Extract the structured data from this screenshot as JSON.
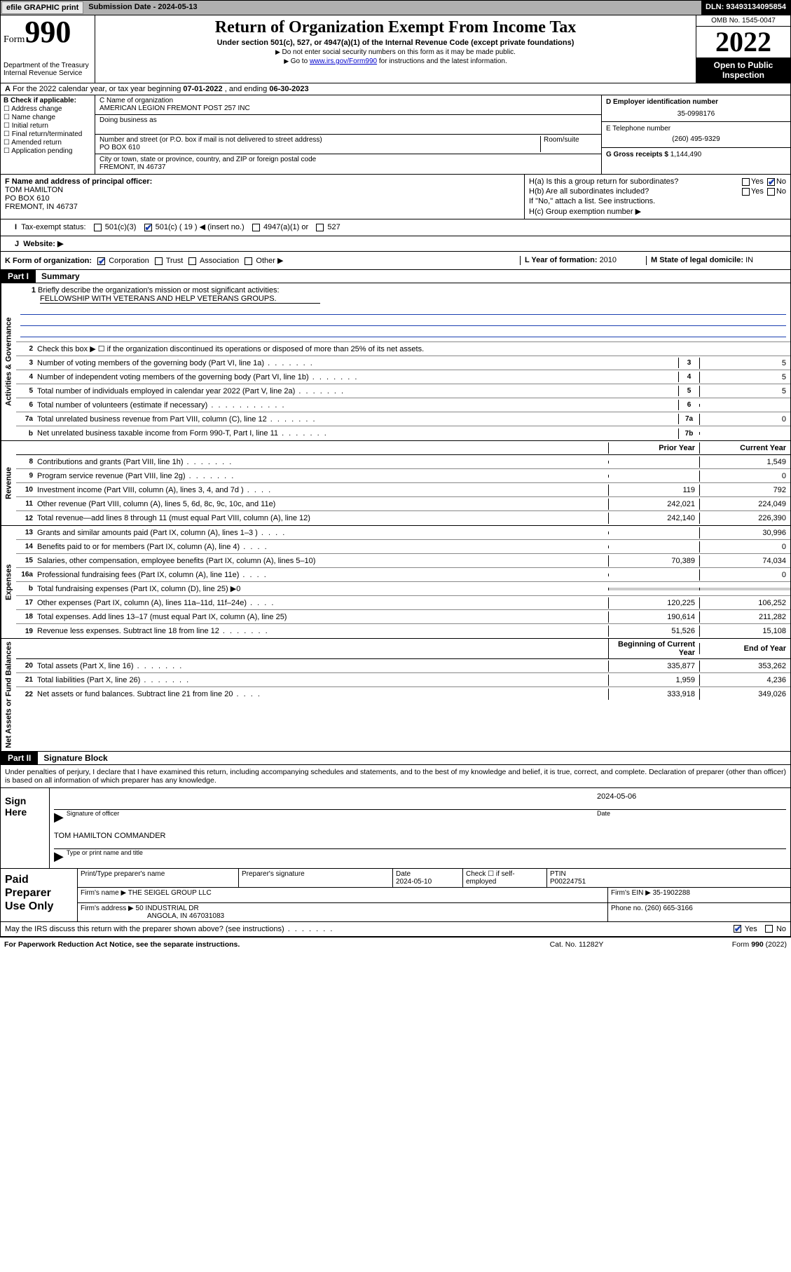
{
  "topbar": {
    "efile": "efile GRAPHIC print",
    "subdate_label": "Submission Date - ",
    "subdate": "2024-05-13",
    "dln": "DLN: 93493134095854"
  },
  "header": {
    "form_label": "Form",
    "form_no": "990",
    "dept": "Department of the Treasury",
    "irs": "Internal Revenue Service",
    "title": "Return of Organization Exempt From Income Tax",
    "sub": "Under section 501(c), 527, or 4947(a)(1) of the Internal Revenue Code (except private foundations)",
    "note1": "Do not enter social security numbers on this form as it may be made public.",
    "note2_a": "Go to ",
    "note2_link": "www.irs.gov/Form990",
    "note2_b": " for instructions and the latest information.",
    "omb": "OMB No. 1545-0047",
    "year": "2022",
    "open": "Open to Public Inspection"
  },
  "rowA": {
    "a": "A",
    "text_a": "For the 2022 calendar year, or tax year beginning ",
    "begin": "07-01-2022",
    "text_b": " , and ending ",
    "end": "06-30-2023"
  },
  "colB": {
    "label": "B Check if applicable:",
    "items": [
      "Address change",
      "Name change",
      "Initial return",
      "Final return/terminated",
      "Amended return",
      "Application pending"
    ]
  },
  "colC": {
    "name_lbl": "C Name of organization",
    "name": "AMERICAN LEGION FREMONT POST 257 INC",
    "dba_lbl": "Doing business as",
    "addr_lbl": "Number and street (or P.O. box if mail is not delivered to street address)",
    "addr": "PO BOX 610",
    "room_lbl": "Room/suite",
    "city_lbl": "City or town, state or province, country, and ZIP or foreign postal code",
    "city": "FREMONT, IN  46737"
  },
  "colDE": {
    "d_lbl": "D Employer identification number",
    "d_val": "35-0998176",
    "e_lbl": "E Telephone number",
    "e_val": "(260) 495-9329",
    "g_lbl": "G Gross receipts $ ",
    "g_val": "1,144,490"
  },
  "rowF": {
    "f_lbl": "F Name and address of principal officer:",
    "f_name": "TOM HAMILTON",
    "f_addr1": "PO BOX 610",
    "f_addr2": "FREMONT, IN  46737",
    "ha": "H(a)  Is this a group return for subordinates?",
    "hb": "H(b)  Are all subordinates included?",
    "hb_note": "If \"No,\" attach a list. See instructions.",
    "hc": "H(c)  Group exemption number ▶",
    "yes": "Yes",
    "no": "No"
  },
  "rowI": {
    "lbl": "Tax-exempt status:",
    "o1": "501(c)(3)",
    "o2a": "501(c) ( ",
    "o2n": "19",
    "o2b": " ) ◀ (insert no.)",
    "o3": "4947(a)(1) or",
    "o4": "527"
  },
  "rowJ": {
    "lbl": "Website: ▶"
  },
  "rowK": {
    "lbl": "K Form of organization:",
    "opts": [
      "Corporation",
      "Trust",
      "Association",
      "Other ▶"
    ],
    "l_lbl": "L Year of formation: ",
    "l_val": "2010",
    "m_lbl": "M State of legal domicile: ",
    "m_val": "IN"
  },
  "part1": {
    "tag": "Part I",
    "title": "Summary",
    "sections": [
      {
        "vlabel": "Activities & Governance",
        "rows": [
          {
            "n": "1",
            "desc_a": "Briefly describe the organization's mission or most significant activities:",
            "desc_b": "FELLOWSHIP WITH VETERANS AND HELP VETERANS GROUPS.",
            "type": "mission"
          },
          {
            "n": "2",
            "desc": "Check this box ▶ ☐  if the organization discontinued its operations or disposed of more than 25% of its net assets.",
            "type": "plain"
          },
          {
            "n": "3",
            "desc": "Number of voting members of the governing body (Part VI, line 1a)",
            "ans": "3",
            "val": "5",
            "dots": "s"
          },
          {
            "n": "4",
            "desc": "Number of independent voting members of the governing body (Part VI, line 1b)",
            "ans": "4",
            "val": "5",
            "dots": "s"
          },
          {
            "n": "5",
            "desc": "Total number of individuals employed in calendar year 2022 (Part V, line 2a)",
            "ans": "5",
            "val": "5",
            "dots": "s"
          },
          {
            "n": "6",
            "desc": "Total number of volunteers (estimate if necessary)",
            "ans": "6",
            "val": "",
            "dots": "l"
          },
          {
            "n": "7a",
            "desc": "Total unrelated business revenue from Part VIII, column (C), line 12",
            "ans": "7a",
            "val": "0",
            "dots": "s"
          },
          {
            "n": "b",
            "desc": "Net unrelated business taxable income from Form 990-T, Part I, line 11",
            "ans": "7b",
            "val": "",
            "dots": "s"
          }
        ]
      },
      {
        "vlabel": "Revenue",
        "header": {
          "py": "Prior Year",
          "cy": "Current Year"
        },
        "rows": [
          {
            "n": "8",
            "desc": "Contributions and grants (Part VIII, line 1h)",
            "py": "",
            "cy": "1,549",
            "dots": "s"
          },
          {
            "n": "9",
            "desc": "Program service revenue (Part VIII, line 2g)",
            "py": "",
            "cy": "0",
            "dots": "s"
          },
          {
            "n": "10",
            "desc": "Investment income (Part VIII, column (A), lines 3, 4, and 7d )",
            "py": "119",
            "cy": "792",
            "dots": "xs"
          },
          {
            "n": "11",
            "desc": "Other revenue (Part VIII, column (A), lines 5, 6d, 8c, 9c, 10c, and 11e)",
            "py": "242,021",
            "cy": "224,049"
          },
          {
            "n": "12",
            "desc": "Total revenue—add lines 8 through 11 (must equal Part VIII, column (A), line 12)",
            "py": "242,140",
            "cy": "226,390"
          }
        ]
      },
      {
        "vlabel": "Expenses",
        "rows": [
          {
            "n": "13",
            "desc": "Grants and similar amounts paid (Part IX, column (A), lines 1–3 )",
            "py": "",
            "cy": "30,996",
            "dots": "xs"
          },
          {
            "n": "14",
            "desc": "Benefits paid to or for members (Part IX, column (A), line 4)",
            "py": "",
            "cy": "0",
            "dots": "xs"
          },
          {
            "n": "15",
            "desc": "Salaries, other compensation, employee benefits (Part IX, column (A), lines 5–10)",
            "py": "70,389",
            "cy": "74,034"
          },
          {
            "n": "16a",
            "desc": "Professional fundraising fees (Part IX, column (A), line 11e)",
            "py": "",
            "cy": "0",
            "dots": "xs"
          },
          {
            "n": "b",
            "desc": "Total fundraising expenses (Part IX, column (D), line 25) ▶0",
            "py": "shade",
            "cy": "shade",
            "type": "shade"
          },
          {
            "n": "17",
            "desc": "Other expenses (Part IX, column (A), lines 11a–11d, 11f–24e)",
            "py": "120,225",
            "cy": "106,252",
            "dots": "xs"
          },
          {
            "n": "18",
            "desc": "Total expenses. Add lines 13–17 (must equal Part IX, column (A), line 25)",
            "py": "190,614",
            "cy": "211,282"
          },
          {
            "n": "19",
            "desc": "Revenue less expenses. Subtract line 18 from line 12",
            "py": "51,526",
            "cy": "15,108",
            "dots": "s"
          }
        ]
      },
      {
        "vlabel": "Net Assets or Fund Balances",
        "header": {
          "py": "Beginning of Current Year",
          "cy": "End of Year"
        },
        "rows": [
          {
            "n": "20",
            "desc": "Total assets (Part X, line 16)",
            "py": "335,877",
            "cy": "353,262",
            "dots": "s"
          },
          {
            "n": "21",
            "desc": "Total liabilities (Part X, line 26)",
            "py": "1,959",
            "cy": "4,236",
            "dots": "s"
          },
          {
            "n": "22",
            "desc": "Net assets or fund balances. Subtract line 21 from line 20",
            "py": "333,918",
            "cy": "349,026",
            "dots": "xs"
          }
        ]
      }
    ]
  },
  "part2": {
    "tag": "Part II",
    "title": "Signature Block",
    "decl": "Under penalties of perjury, I declare that I have examined this return, including accompanying schedules and statements, and to the best of my knowledge and belief, it is true, correct, and complete. Declaration of preparer (other than officer) is based on all information of which preparer has any knowledge.",
    "sign_here": "Sign Here",
    "sig_of_officer": "Signature of officer",
    "date_lbl": "Date",
    "sig_date": "2024-05-06",
    "officer_name": "TOM HAMILTON COMMANDER",
    "type_name": "Type or print name and title",
    "paid_prep": "Paid Preparer Use Only",
    "pt_name": "Print/Type preparer's name",
    "pt_sig": "Preparer's signature",
    "pt_date_lbl": "Date",
    "pt_date": "2024-05-10",
    "pt_check": "Check ☐ if self-employed",
    "ptin_lbl": "PTIN",
    "ptin": "P00224751",
    "firm_name_lbl": "Firm's name    ▶ ",
    "firm_name": "THE SEIGEL GROUP LLC",
    "firm_ein_lbl": "Firm's EIN ▶ ",
    "firm_ein": "35-1902288",
    "firm_addr_lbl": "Firm's address ▶ ",
    "firm_addr1": "50 INDUSTRIAL DR",
    "firm_addr2": "ANGOLA, IN  467031083",
    "phone_lbl": "Phone no. ",
    "phone": "(260) 665-3166",
    "may": "May the IRS discuss this return with the preparer shown above? (see instructions)",
    "yes": "Yes",
    "no": "No"
  },
  "footer": {
    "a": "For Paperwork Reduction Act Notice, see the separate instructions.",
    "b": "Cat. No. 11282Y",
    "c": "Form 990 (2022)"
  },
  "colors": {
    "link": "#0000cc",
    "checked": "#1a3fb0",
    "shade": "#cccccc",
    "topbar": "#b0b0b0"
  }
}
